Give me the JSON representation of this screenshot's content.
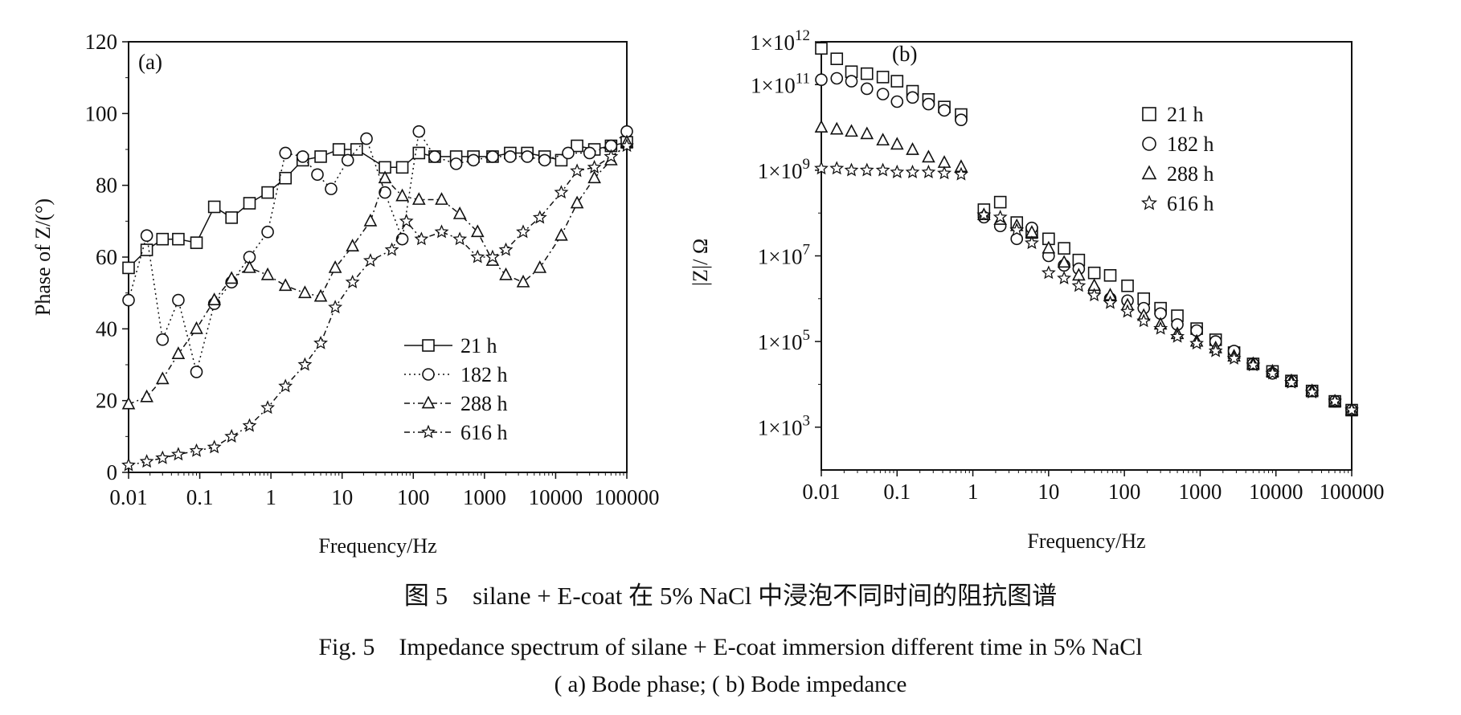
{
  "figure": {
    "caption_cn": "图 5　silane + E-coat 在 5% NaCl 中浸泡不同时间的阻抗图谱",
    "caption_en": "Fig. 5　Impedance spectrum of silane + E-coat immersion different time in 5% NaCl",
    "caption_sub": "( a) Bode phase; ( b) Bode impedance"
  },
  "chart_data": [
    {
      "type": "line",
      "panel_label": "(a)",
      "xlabel": "Frequency/Hz",
      "ylabel": "Phase of Z/(°)",
      "xscale": "log",
      "xlim": [
        0.01,
        100000
      ],
      "ylim": [
        0,
        120
      ],
      "x_ticks": [
        "0.01",
        "0.1",
        "1",
        "10",
        "100",
        "1000",
        "10000",
        "100000"
      ],
      "y_ticks": [
        "0",
        "20",
        "40",
        "60",
        "80",
        "100",
        "120"
      ],
      "grid": false,
      "legend_position": "lower-right",
      "series": [
        {
          "name": "21 h",
          "marker": "square",
          "line": "solid",
          "x": [
            0.01,
            0.018,
            0.03,
            0.05,
            0.09,
            0.16,
            0.28,
            0.5,
            0.9,
            1.6,
            2.8,
            5,
            9,
            16,
            40,
            70,
            120,
            200,
            400,
            700,
            1300,
            2300,
            4000,
            7000,
            12000,
            20000,
            35000,
            60000,
            100000
          ],
          "y": [
            57,
            62,
            65,
            65,
            64,
            74,
            71,
            75,
            78,
            82,
            87,
            88,
            90,
            90,
            85,
            85,
            89,
            88,
            88,
            88,
            88,
            89,
            89,
            88,
            87,
            91,
            90,
            91,
            92
          ]
        },
        {
          "name": "182 h",
          "marker": "circle",
          "line": "dotted",
          "x": [
            0.01,
            0.018,
            0.03,
            0.05,
            0.09,
            0.16,
            0.28,
            0.5,
            0.9,
            1.6,
            2.8,
            4.5,
            7,
            12,
            22,
            40,
            70,
            120,
            200,
            400,
            700,
            1300,
            2300,
            4000,
            7000,
            15000,
            30000,
            60000,
            100000
          ],
          "y": [
            48,
            66,
            37,
            48,
            28,
            47,
            53,
            60,
            67,
            89,
            88,
            83,
            79,
            87,
            93,
            78,
            65,
            95,
            88,
            86,
            87,
            88,
            88,
            88,
            87,
            89,
            89,
            91,
            95
          ]
        },
        {
          "name": "288 h",
          "marker": "triangle",
          "line": "dash-dot",
          "x": [
            0.01,
            0.018,
            0.03,
            0.05,
            0.09,
            0.16,
            0.28,
            0.5,
            0.9,
            1.6,
            3,
            5,
            8,
            14,
            25,
            40,
            70,
            120,
            250,
            450,
            800,
            1300,
            2000,
            3500,
            6000,
            12000,
            20000,
            35000,
            60000,
            100000
          ],
          "y": [
            19,
            21,
            26,
            33,
            40,
            48,
            54,
            57,
            55,
            52,
            50,
            49,
            57,
            63,
            70,
            82,
            77,
            76,
            76,
            72,
            67,
            59,
            55,
            53,
            57,
            66,
            75,
            82,
            87,
            92
          ]
        },
        {
          "name": "616 h",
          "marker": "star",
          "line": "dash-dot",
          "x": [
            0.01,
            0.018,
            0.03,
            0.05,
            0.09,
            0.16,
            0.28,
            0.5,
            0.9,
            1.6,
            3,
            5,
            8,
            14,
            25,
            50,
            80,
            130,
            250,
            450,
            800,
            1300,
            2000,
            3500,
            6000,
            12000,
            20000,
            35000,
            60000,
            100000
          ],
          "y": [
            2,
            3,
            4,
            5,
            6,
            7,
            10,
            13,
            18,
            24,
            30,
            36,
            46,
            53,
            59,
            62,
            70,
            65,
            67,
            65,
            60,
            60,
            62,
            67,
            71,
            78,
            84,
            85,
            88,
            91
          ]
        }
      ]
    },
    {
      "type": "scatter",
      "panel_label": "(b)",
      "xlabel": "Frequency/Hz",
      "ylabel": "|Z|/ Ω",
      "xscale": "log",
      "yscale": "log",
      "xlim": [
        0.01,
        100000
      ],
      "ylim": [
        100,
        1000000000000
      ],
      "x_ticks": [
        "0.01",
        "0.1",
        "1",
        "10",
        "100",
        "1000",
        "10000",
        "100000"
      ],
      "y_ticks": [
        {
          "value": 1000000000000,
          "mantissa": "1×10",
          "exp": "12"
        },
        {
          "value": 100000000000,
          "mantissa": "1×10",
          "exp": "11"
        },
        {
          "value": 1000000000,
          "mantissa": "1×10",
          "exp": "9"
        },
        {
          "value": 10000000,
          "mantissa": "1×10",
          "exp": "7"
        },
        {
          "value": 100000,
          "mantissa": "1×10",
          "exp": "5"
        },
        {
          "value": 1000,
          "mantissa": "1×10",
          "exp": "3"
        }
      ],
      "grid": false,
      "legend_position": "upper-right",
      "series": [
        {
          "name": "21 h",
          "marker": "square",
          "x": [
            0.01,
            0.016,
            0.025,
            0.04,
            0.065,
            0.1,
            0.16,
            0.26,
            0.42,
            0.7,
            1.4,
            2.3,
            3.8,
            6,
            10,
            16,
            25,
            40,
            65,
            110,
            180,
            300,
            500,
            900,
            1600,
            2800,
            5000,
            9000,
            16000,
            30000,
            60000,
            100000
          ],
          "y": [
            700000000000,
            400000000000,
            200000000000,
            180000000000,
            150000000000,
            120000000000,
            70000000000,
            45000000000,
            30000000000,
            20000000000,
            120000000,
            180000000,
            60000000,
            35000000,
            25000000,
            15000000,
            8000000,
            4000000,
            3500000,
            2000000,
            1000000,
            600000,
            400000,
            200000,
            110000,
            55000,
            30000,
            20000,
            12000,
            7000,
            4000,
            2500
          ]
        },
        {
          "name": "182 h",
          "marker": "circle",
          "x": [
            0.01,
            0.016,
            0.025,
            0.04,
            0.065,
            0.1,
            0.16,
            0.26,
            0.42,
            0.7,
            1.4,
            2.3,
            3.8,
            6,
            10,
            16,
            25,
            40,
            65,
            110,
            180,
            300,
            500,
            900,
            1600,
            2800,
            5000,
            9000,
            16000,
            30000,
            60000,
            100000
          ],
          "y": [
            130000000000,
            140000000000,
            120000000000,
            80000000000,
            60000000000,
            40000000000,
            50000000000,
            35000000000,
            25000000000,
            15000000000,
            80000000,
            50000000,
            25000000,
            45000000,
            10000000,
            6000000,
            5000000,
            1500000,
            1000000,
            900000,
            600000,
            450000,
            250000,
            180000,
            100000,
            60000,
            30000,
            18000,
            12000,
            7000,
            4000,
            2500
          ]
        },
        {
          "name": "288 h",
          "marker": "triangle",
          "x": [
            0.01,
            0.016,
            0.025,
            0.04,
            0.065,
            0.1,
            0.16,
            0.26,
            0.42,
            0.7,
            1.4,
            2.3,
            3.8,
            6,
            10,
            16,
            25,
            40,
            65,
            110,
            180,
            300,
            500,
            900,
            1600,
            2800,
            5000,
            9000,
            16000,
            30000,
            60000,
            100000
          ],
          "y": [
            10000000000,
            9000000000,
            8000000000,
            7000000000,
            5000000000,
            4000000000,
            3000000000,
            2000000000,
            1500000000,
            1200000000,
            90000000,
            70000000,
            50000000,
            35000000,
            15000000,
            7000000,
            3500000,
            2000000,
            1200000,
            700000,
            400000,
            250000,
            150000,
            100000,
            70000,
            45000,
            30000,
            20000,
            12000,
            7000,
            4000,
            2500
          ]
        },
        {
          "name": "616 h",
          "marker": "star",
          "x": [
            0.01,
            0.016,
            0.025,
            0.04,
            0.065,
            0.1,
            0.16,
            0.26,
            0.42,
            0.7,
            1.4,
            2.3,
            3.8,
            6,
            10,
            16,
            25,
            40,
            65,
            110,
            180,
            300,
            500,
            900,
            1600,
            2800,
            5000,
            9000,
            16000,
            30000,
            60000,
            100000
          ],
          "y": [
            1100000000,
            1100000000,
            1000000000,
            1000000000,
            1000000000,
            900000000,
            900000000,
            900000000,
            850000000,
            800000000,
            90000000,
            80000000,
            40000000,
            20000000,
            4000000,
            3000000,
            2000000,
            1200000,
            800000,
            500000,
            300000,
            200000,
            130000,
            90000,
            60000,
            40000,
            28000,
            18000,
            11000,
            6500,
            4000,
            2500
          ]
        }
      ]
    }
  ]
}
